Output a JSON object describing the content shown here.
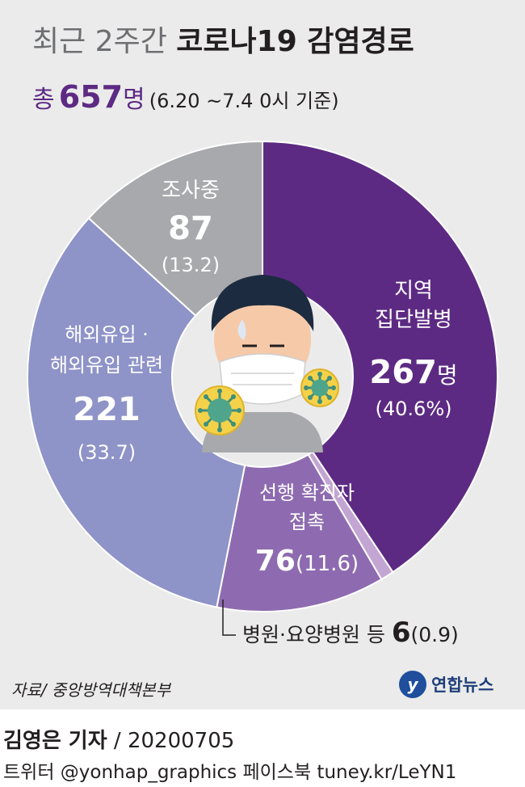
{
  "header": {
    "title_light": "최근 2주간",
    "title_bold": "코로나19 감염경로",
    "total_prefix": "총",
    "total_value": "657",
    "total_unit": "명",
    "total_note": "(6.20 ~7.4 0시 기준)"
  },
  "chart_data": {
    "type": "pie",
    "total": 657,
    "slices": [
      {
        "name_lines": [
          "지역",
          "집단발병"
        ],
        "value": 267,
        "value_text": "267",
        "unit": "명",
        "pct_text": "(40.6%)",
        "color": "#5d2a83"
      },
      {
        "name_lines": [
          "병원·요양병원 등"
        ],
        "value": 6,
        "value_text": "6",
        "pct_text": "(0.9)",
        "color": "#c3a5d3"
      },
      {
        "name_lines": [
          "선행 확진자",
          "접촉"
        ],
        "value": 76,
        "value_text": "76",
        "pct_text": "(11.6)",
        "color": "#8e6bb0"
      },
      {
        "name_lines": [
          "해외유입 ·",
          "해외유입 관련"
        ],
        "value": 221,
        "value_text": "221",
        "pct_text": "(33.7)",
        "color": "#8e93c8"
      },
      {
        "name_lines": [
          "조사중"
        ],
        "value": 87,
        "value_text": "87",
        "pct_text": "(13.2)",
        "color": "#a7a9ac"
      }
    ]
  },
  "footer": {
    "source": "자료/ 중앙방역대책본부",
    "logo_mark": "y",
    "logo_text": "연합뉴스",
    "reporter_name": "김영은 기자",
    "reporter_date": " / 20200705",
    "social": "트위터 @yonhap_graphics  페이스북 tuney.kr/LeYN1"
  },
  "colors": {
    "panel": "#ebebeb",
    "accent": "#5d2a83"
  },
  "icons": [
    "face-mask-icon",
    "virus-icon"
  ]
}
